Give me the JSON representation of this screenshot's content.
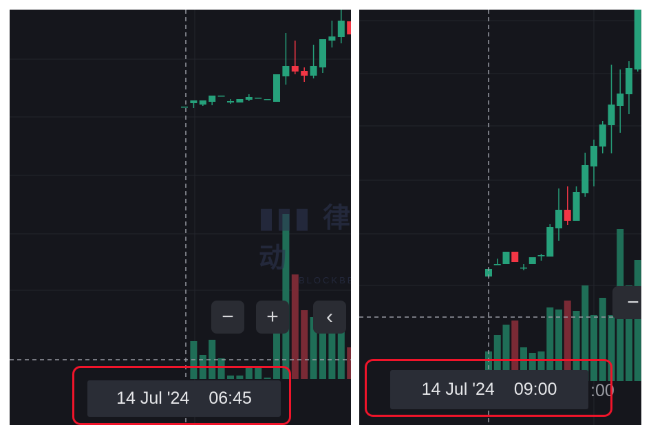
{
  "colors": {
    "background": "#15161c",
    "up": "#26a17b",
    "down": "#f23645",
    "up_volume": "#1f6e57",
    "down_volume": "#7a2a35",
    "highlight": "#f0142a",
    "grid": "#23252d",
    "crosshair": "#9a9ca3"
  },
  "left": {
    "crosshair_time": {
      "date": "14 Jul '24",
      "time": "06:45"
    },
    "controls": {
      "zoom_out": "−",
      "zoom_in": "+",
      "scroll_back": "‹"
    },
    "watermark": {
      "logo_text": "律动",
      "sub_text": "BLOCKBEATS"
    },
    "candles": [
      [
        462,
        462,
        462,
        461,
        null
      ],
      [
        467,
        471,
        460,
        467,
        55
      ],
      [
        465,
        471,
        463,
        465,
        35
      ],
      [
        469,
        478,
        464,
        469,
        57
      ],
      [
        478,
        478,
        466,
        466,
        30
      ],
      [
        468,
        470,
        466,
        473,
        5
      ],
      [
        468,
        473,
        468,
        473,
        5
      ],
      [
        472,
        476,
        470,
        480,
        17
      ],
      [
        475,
        475,
        472,
        472,
        17
      ],
      [
        473,
        473,
        472,
        473,
        2
      ],
      [
        469,
        509,
        469,
        509,
        90
      ],
      [
        506,
        521,
        494,
        569,
        240
      ],
      [
        521,
        513,
        509,
        558,
        152
      ],
      [
        514,
        507,
        498,
        519,
        100
      ],
      [
        507,
        521,
        503,
        552,
        90
      ],
      [
        519,
        560,
        511,
        560,
        70
      ],
      [
        558,
        564,
        548,
        587,
        70
      ],
      [
        563,
        587,
        554,
        612,
        90
      ],
      [
        586,
        567,
        567,
        586,
        46
      ]
    ]
  },
  "right": {
    "crosshair_time": {
      "date": "14 Jul '24",
      "time": "09:00"
    },
    "axis_fragment": ":00",
    "controls": {
      "zoom_out": "−"
    },
    "candles": [
      [
        215,
        226,
        214,
        227,
        43
      ],
      [
        233,
        233,
        232,
        241,
        67
      ],
      [
        233,
        251,
        233,
        251,
        82
      ],
      [
        251,
        236,
        236,
        251,
        88
      ],
      [
        228,
        228,
        224,
        233,
        49
      ],
      [
        233,
        243,
        233,
        243,
        41
      ],
      [
        246,
        246,
        238,
        248,
        43
      ],
      [
        244,
        287,
        244,
        291,
        107
      ],
      [
        285,
        312,
        267,
        343,
        104
      ],
      [
        312,
        296,
        290,
        346,
        117
      ],
      [
        296,
        338,
        296,
        346,
        102
      ],
      [
        336,
        377,
        331,
        395,
        139
      ],
      [
        375,
        405,
        346,
        414,
        96
      ],
      [
        404,
        436,
        394,
        441,
        121
      ],
      [
        435,
        465,
        394,
        523,
        96
      ],
      [
        463,
        481,
        424,
        516,
        221
      ],
      [
        480,
        518,
        451,
        528,
        139
      ],
      [
        516,
        614,
        513,
        621,
        176
      ]
    ]
  }
}
